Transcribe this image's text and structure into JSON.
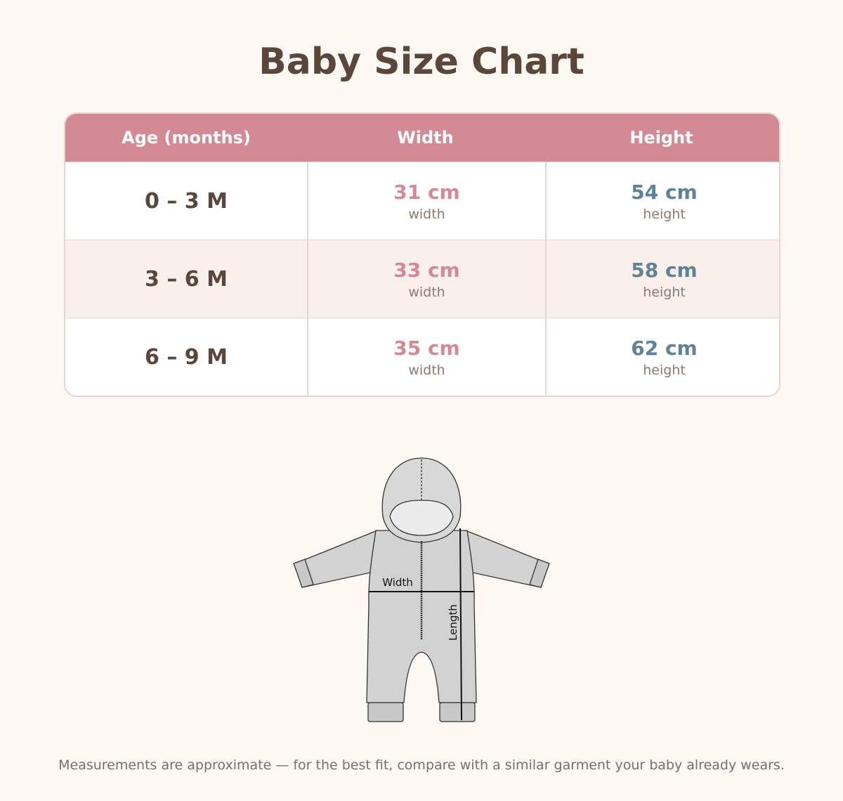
{
  "title": "Baby Size Chart",
  "table": {
    "headers": [
      "Age (months)",
      "Width",
      "Height"
    ],
    "rows": [
      {
        "age": "0 – 3 M",
        "width": "31 cm",
        "width_label": "width",
        "height": "54 cm",
        "height_label": "height"
      },
      {
        "age": "3 – 6 M",
        "width": "33 cm",
        "width_label": "width",
        "height": "58 cm",
        "height_label": "height"
      },
      {
        "age": "6 – 9 M",
        "width": "35 cm",
        "width_label": "width",
        "height": "62 cm",
        "height_label": "height"
      }
    ]
  },
  "diagram": {
    "width_label": "Width",
    "length_label": "Length"
  },
  "note": "Measurements are approximate — for the best fit, compare with a similar garment your baby already wears."
}
